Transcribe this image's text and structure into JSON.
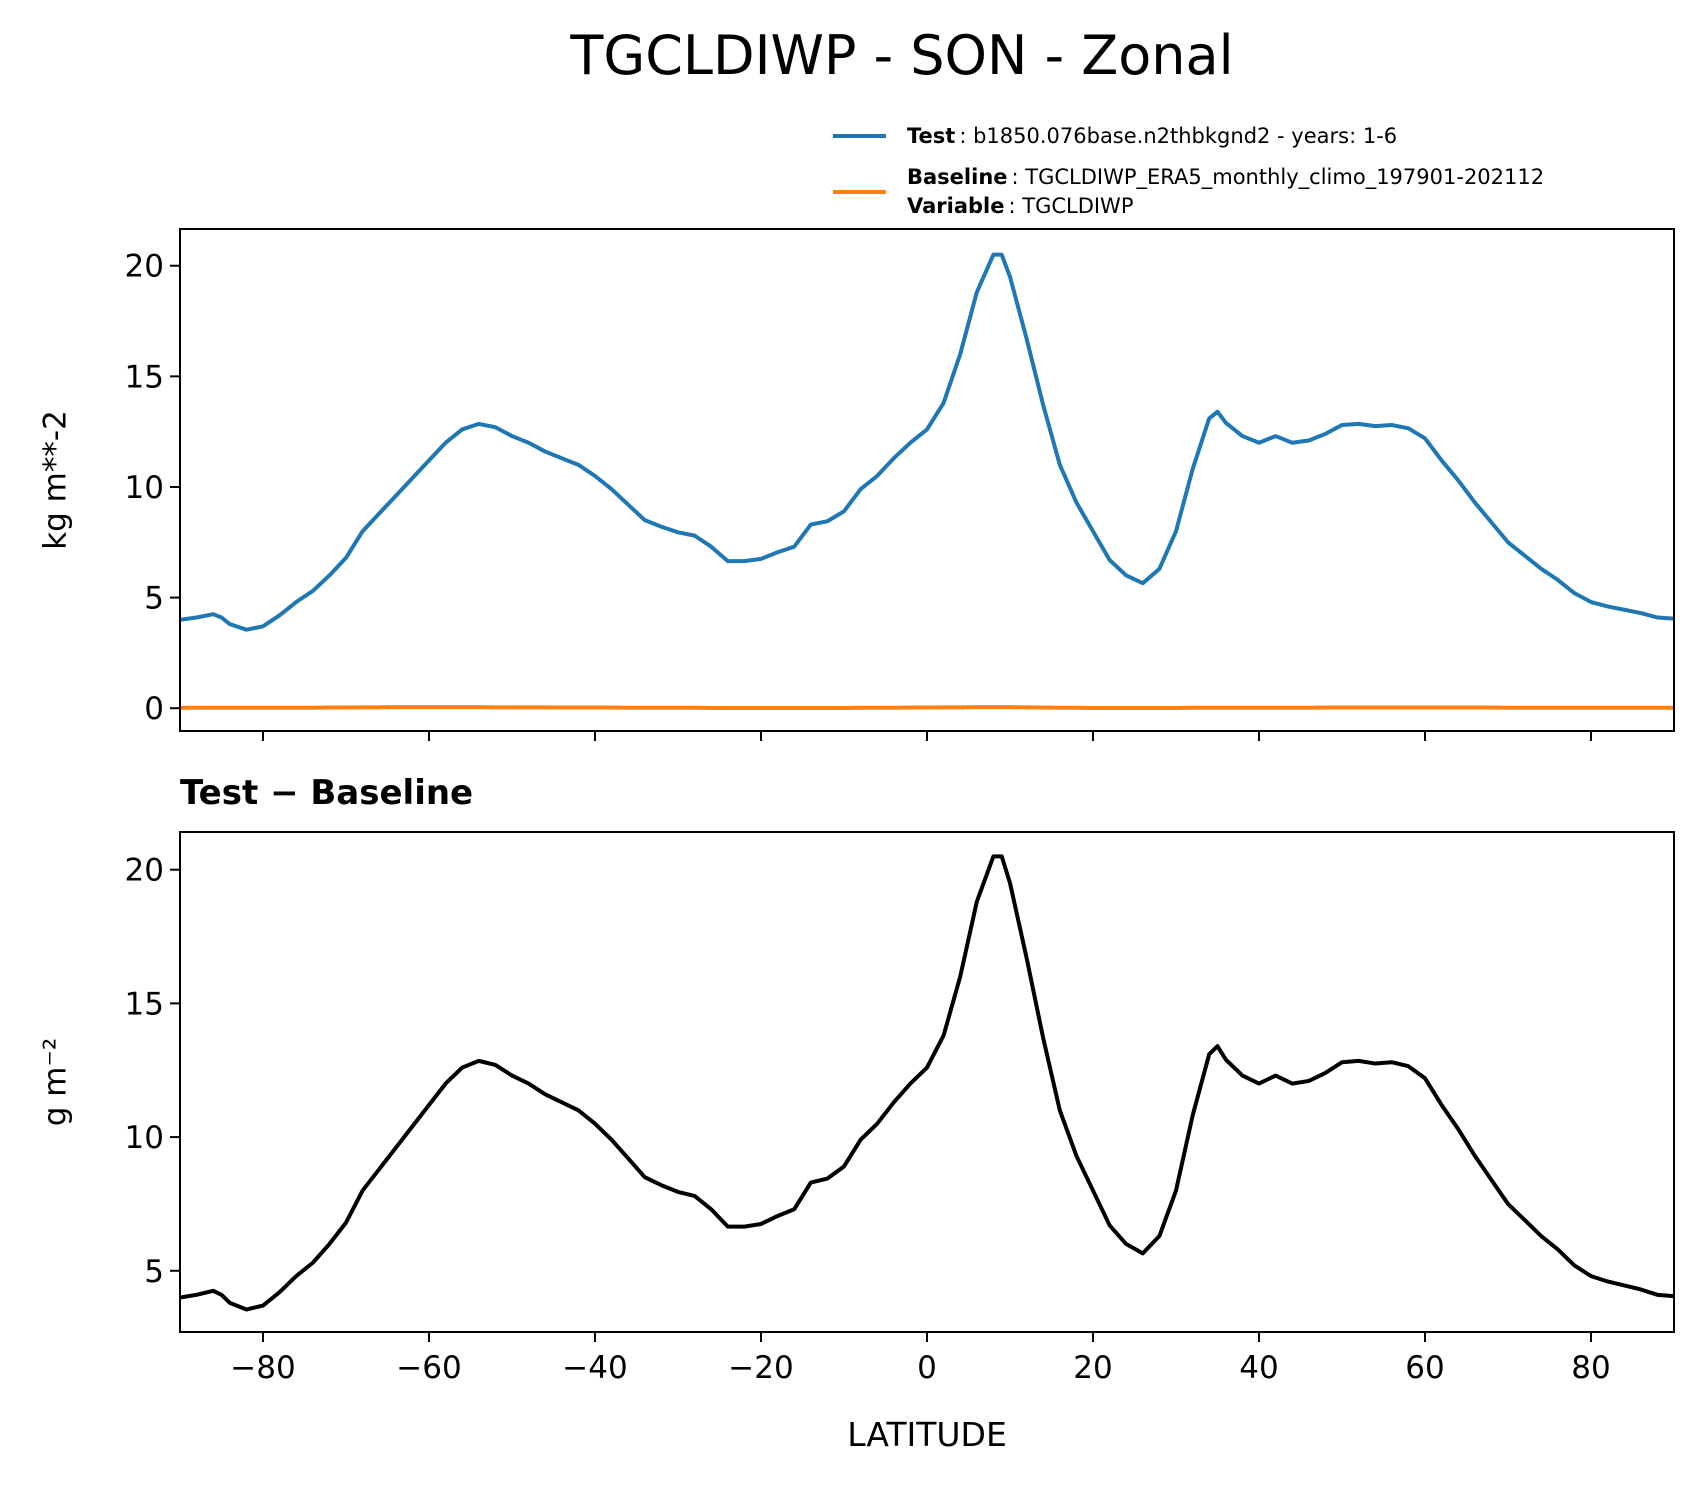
{
  "chart_data": [
    {
      "type": "line",
      "title": "TGCLDIWP - SON - Zonal",
      "ylabel": "kg m**-2",
      "x": [
        -90,
        -88,
        -86,
        -85,
        -84,
        -82,
        -80,
        -78,
        -76,
        -74,
        -72,
        -70,
        -68,
        -66,
        -64,
        -62,
        -60,
        -58,
        -56,
        -54,
        -52,
        -50,
        -48,
        -46,
        -44,
        -42,
        -40,
        -38,
        -36,
        -34,
        -32,
        -30,
        -28,
        -26,
        -24,
        -22,
        -20,
        -18,
        -16,
        -14,
        -12,
        -10,
        -8,
        -6,
        -4,
        -2,
        0,
        2,
        4,
        6,
        8,
        9,
        10,
        12,
        14,
        16,
        18,
        20,
        22,
        24,
        26,
        28,
        30,
        32,
        34,
        35,
        36,
        38,
        40,
        42,
        44,
        46,
        48,
        50,
        52,
        54,
        56,
        58,
        60,
        62,
        64,
        66,
        68,
        70,
        72,
        74,
        76,
        78,
        80,
        82,
        84,
        86,
        88,
        90
      ],
      "series": [
        {
          "name": "Test",
          "detail": ": b1850.076base.n2thbkgnd2 - years: 1-6",
          "color": "#1f77b4",
          "values": [
            4.0,
            4.1,
            4.25,
            4.1,
            3.8,
            3.55,
            3.7,
            4.2,
            4.8,
            5.3,
            6.0,
            6.8,
            8.0,
            8.8,
            9.6,
            10.4,
            11.2,
            12.0,
            12.6,
            12.85,
            12.7,
            12.3,
            12.0,
            11.6,
            11.3,
            11.0,
            10.5,
            9.9,
            9.2,
            8.5,
            8.2,
            7.95,
            7.8,
            7.3,
            6.65,
            6.65,
            6.75,
            7.05,
            7.3,
            8.3,
            8.45,
            8.9,
            9.9,
            10.5,
            11.3,
            12.0,
            12.6,
            13.8,
            16.0,
            18.8,
            20.5,
            20.5,
            19.5,
            16.7,
            13.7,
            11.0,
            9.3,
            8.0,
            6.7,
            6.0,
            5.65,
            6.3,
            8.0,
            10.8,
            13.1,
            13.4,
            12.9,
            12.3,
            12.0,
            12.3,
            12.0,
            12.1,
            12.4,
            12.8,
            12.85,
            12.75,
            12.8,
            12.65,
            12.2,
            11.2,
            10.3,
            9.3,
            8.4,
            7.5,
            6.9,
            6.3,
            5.8,
            5.2,
            4.8,
            4.6,
            4.45,
            4.3,
            4.1,
            4.05
          ]
        },
        {
          "name": "Baseline",
          "detail": ": TGCLDIWP_ERA5_monthly_climo_197901-202112",
          "color": "#ff7f0e",
          "values": [
            0.02,
            0.02,
            0.02,
            0.02,
            0.02,
            0.02,
            0.02,
            0.02,
            0.02,
            0.02,
            0.03,
            0.03,
            0.04,
            0.04,
            0.05,
            0.05,
            0.05,
            0.05,
            0.05,
            0.05,
            0.04,
            0.04,
            0.04,
            0.04,
            0.03,
            0.03,
            0.03,
            0.03,
            0.02,
            0.02,
            0.02,
            0.02,
            0.02,
            0.01,
            0.01,
            0.01,
            0.01,
            0.01,
            0.01,
            0.01,
            0.01,
            0.01,
            0.02,
            0.02,
            0.02,
            0.03,
            0.03,
            0.04,
            0.04,
            0.05,
            0.05,
            0.05,
            0.05,
            0.04,
            0.03,
            0.02,
            0.02,
            0.01,
            0.01,
            0.01,
            0.01,
            0.01,
            0.01,
            0.02,
            0.02,
            0.02,
            0.02,
            0.02,
            0.02,
            0.02,
            0.02,
            0.02,
            0.03,
            0.03,
            0.03,
            0.03,
            0.03,
            0.03,
            0.03,
            0.03,
            0.03,
            0.03,
            0.03,
            0.02,
            0.02,
            0.02,
            0.02,
            0.02,
            0.02,
            0.02,
            0.02,
            0.02,
            0.02,
            0.02
          ]
        }
      ],
      "legend_extra": {
        "name": "Variable",
        "detail": ": TGCLDIWP"
      },
      "xlim": [
        -90,
        90
      ],
      "xticks": [
        -80,
        -60,
        -40,
        -20,
        0,
        20,
        40,
        60,
        80
      ],
      "ylim": [
        -1.03,
        21.66
      ],
      "yticks": [
        0,
        5,
        10,
        15,
        20
      ]
    },
    {
      "type": "line",
      "title": "Test − Baseline",
      "ylabel": "g m⁻²",
      "xlabel": "LATITUDE",
      "x": [
        -90,
        -88,
        -86,
        -85,
        -84,
        -82,
        -80,
        -78,
        -76,
        -74,
        -72,
        -70,
        -68,
        -66,
        -64,
        -62,
        -60,
        -58,
        -56,
        -54,
        -52,
        -50,
        -48,
        -46,
        -44,
        -42,
        -40,
        -38,
        -36,
        -34,
        -32,
        -30,
        -28,
        -26,
        -24,
        -22,
        -20,
        -18,
        -16,
        -14,
        -12,
        -10,
        -8,
        -6,
        -4,
        -2,
        0,
        2,
        4,
        6,
        8,
        9,
        10,
        12,
        14,
        16,
        18,
        20,
        22,
        24,
        26,
        28,
        30,
        32,
        34,
        35,
        36,
        38,
        40,
        42,
        44,
        46,
        48,
        50,
        52,
        54,
        56,
        58,
        60,
        62,
        64,
        66,
        68,
        70,
        72,
        74,
        76,
        78,
        80,
        82,
        84,
        86,
        88,
        90
      ],
      "series": [
        {
          "color": "#000000",
          "values": [
            4.0,
            4.1,
            4.25,
            4.1,
            3.8,
            3.55,
            3.7,
            4.2,
            4.8,
            5.3,
            6.0,
            6.8,
            8.0,
            8.8,
            9.6,
            10.4,
            11.2,
            12.0,
            12.6,
            12.85,
            12.7,
            12.3,
            12.0,
            11.6,
            11.3,
            11.0,
            10.5,
            9.9,
            9.2,
            8.5,
            8.2,
            7.95,
            7.8,
            7.3,
            6.65,
            6.65,
            6.75,
            7.05,
            7.3,
            8.3,
            8.45,
            8.9,
            9.9,
            10.5,
            11.3,
            12.0,
            12.6,
            13.8,
            16.0,
            18.8,
            20.5,
            20.5,
            19.5,
            16.7,
            13.7,
            11.0,
            9.3,
            8.0,
            6.7,
            6.0,
            5.65,
            6.3,
            8.0,
            10.8,
            13.1,
            13.4,
            12.9,
            12.3,
            12.0,
            12.3,
            12.0,
            12.1,
            12.4,
            12.8,
            12.85,
            12.75,
            12.8,
            12.65,
            12.2,
            11.2,
            10.3,
            9.3,
            8.4,
            7.5,
            6.9,
            6.3,
            5.8,
            5.2,
            4.8,
            4.6,
            4.45,
            4.3,
            4.1,
            4.05
          ]
        }
      ],
      "xlim": [
        -90,
        90
      ],
      "xticks": [
        {
          "value": -80,
          "label": "−80"
        },
        {
          "value": -60,
          "label": "−60"
        },
        {
          "value": -40,
          "label": "−40"
        },
        {
          "value": -20,
          "label": "−20"
        },
        0,
        20,
        40,
        60,
        80
      ],
      "ylim": [
        2.71,
        21.41
      ],
      "yticks": [
        5,
        10,
        15,
        20
      ]
    }
  ]
}
